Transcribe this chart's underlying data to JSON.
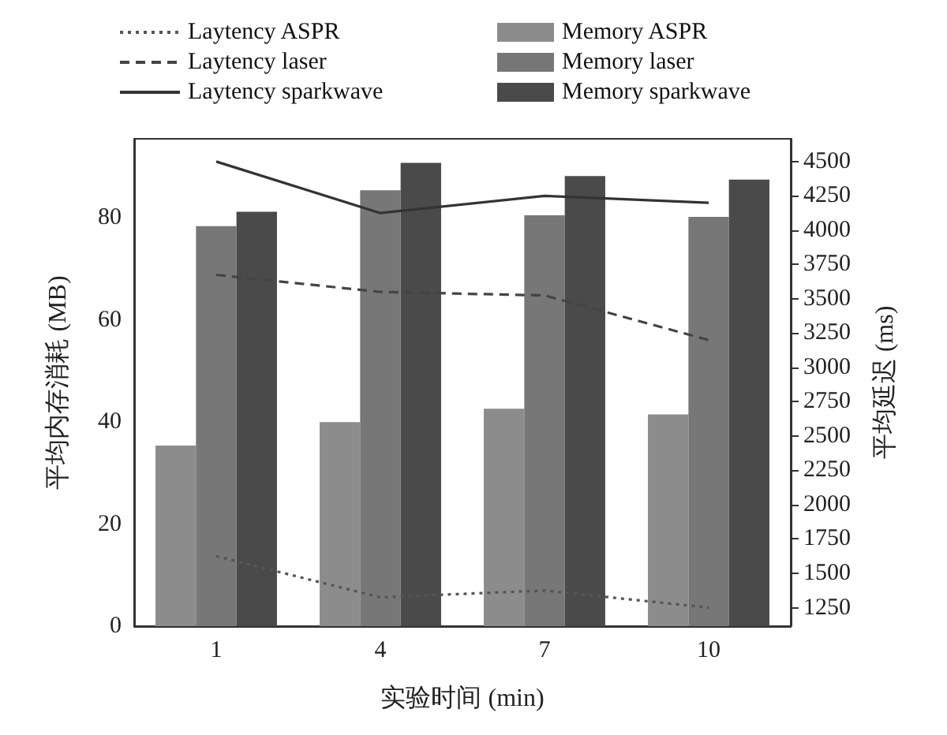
{
  "chart_data": {
    "type": "bar",
    "xlabel": "实验时间 (min)",
    "ylabel": "平均内存消耗 (MB)",
    "y2label": "平均延迟 (ms)",
    "categories": [
      "1",
      "4",
      "7",
      "10"
    ],
    "series": [
      {
        "name": "Laytency ASPR",
        "type": "line",
        "axis": "y2",
        "color": "#555555",
        "line_style": "dotted",
        "values": [
          1625,
          1325,
          1375,
          1250
        ]
      },
      {
        "name": "Laytency laser",
        "type": "line",
        "axis": "y2",
        "color": "#444444",
        "line_style": "dashed",
        "values": [
          3675,
          3550,
          3525,
          3200
        ]
      },
      {
        "name": "Laytency sparkwave",
        "type": "line",
        "axis": "y2",
        "color": "#333333",
        "line_style": "solid",
        "values": [
          4500,
          4125,
          4250,
          4200
        ]
      },
      {
        "name": "Memory ASPR",
        "color": "#8c8c8c",
        "values": [
          35.4,
          40,
          42.6,
          41.5
        ]
      },
      {
        "name": "Memory laser",
        "color": "#777777",
        "values": [
          78.4,
          85.4,
          80.5,
          80.2
        ]
      },
      {
        "name": "Memory sparkwave",
        "color": "#4a4a4a",
        "values": [
          81.2,
          90.8,
          88.2,
          87.5
        ]
      }
    ],
    "ylim": [
      0,
      95.5
    ],
    "yticks": [
      0,
      20,
      40,
      60,
      80
    ],
    "y2lim": [
      1115,
      4666
    ],
    "y2ticks": [
      1250,
      1500,
      1750,
      2000,
      2250,
      2500,
      2750,
      3000,
      3250,
      3500,
      3750,
      4000,
      4250,
      4500
    ],
    "grid": false,
    "legend": "top",
    "marker": "none"
  }
}
